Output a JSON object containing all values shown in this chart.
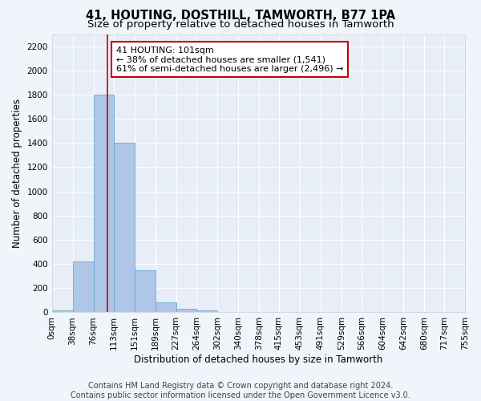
{
  "title": "41, HOUTING, DOSTHILL, TAMWORTH, B77 1PA",
  "subtitle": "Size of property relative to detached houses in Tamworth",
  "xlabel": "Distribution of detached houses by size in Tamworth",
  "ylabel": "Number of detached properties",
  "footer_line1": "Contains HM Land Registry data © Crown copyright and database right 2024.",
  "footer_line2": "Contains public sector information licensed under the Open Government Licence v3.0.",
  "annotation_line1": "41 HOUTING: 101sqm",
  "annotation_line2": "← 38% of detached houses are smaller (1,541)",
  "annotation_line3": "61% of semi-detached houses are larger (2,496) →",
  "bar_edges": [
    0,
    38,
    76,
    113,
    151,
    189,
    227,
    264,
    302,
    340,
    378,
    415,
    453,
    491,
    529,
    566,
    604,
    642,
    680,
    717,
    755
  ],
  "bar_heights": [
    15,
    420,
    1800,
    1400,
    350,
    80,
    30,
    15,
    0,
    0,
    0,
    0,
    0,
    0,
    0,
    0,
    0,
    0,
    0,
    0
  ],
  "bar_color": "#aec6e8",
  "bar_edgecolor": "#6aaad4",
  "vline_x": 101,
  "vline_color": "#cc0000",
  "ylim": [
    0,
    2300
  ],
  "yticks": [
    0,
    200,
    400,
    600,
    800,
    1000,
    1200,
    1400,
    1600,
    1800,
    2000,
    2200
  ],
  "bg_color": "#f0f4fb",
  "plot_bg_color": "#e8eef8",
  "grid_color": "#ffffff",
  "annotation_box_edgecolor": "#cc0000",
  "annotation_box_facecolor": "#ffffff",
  "title_fontsize": 10.5,
  "subtitle_fontsize": 9.5,
  "axis_label_fontsize": 8.5,
  "tick_fontsize": 7.5,
  "annotation_fontsize": 8,
  "footer_fontsize": 7
}
